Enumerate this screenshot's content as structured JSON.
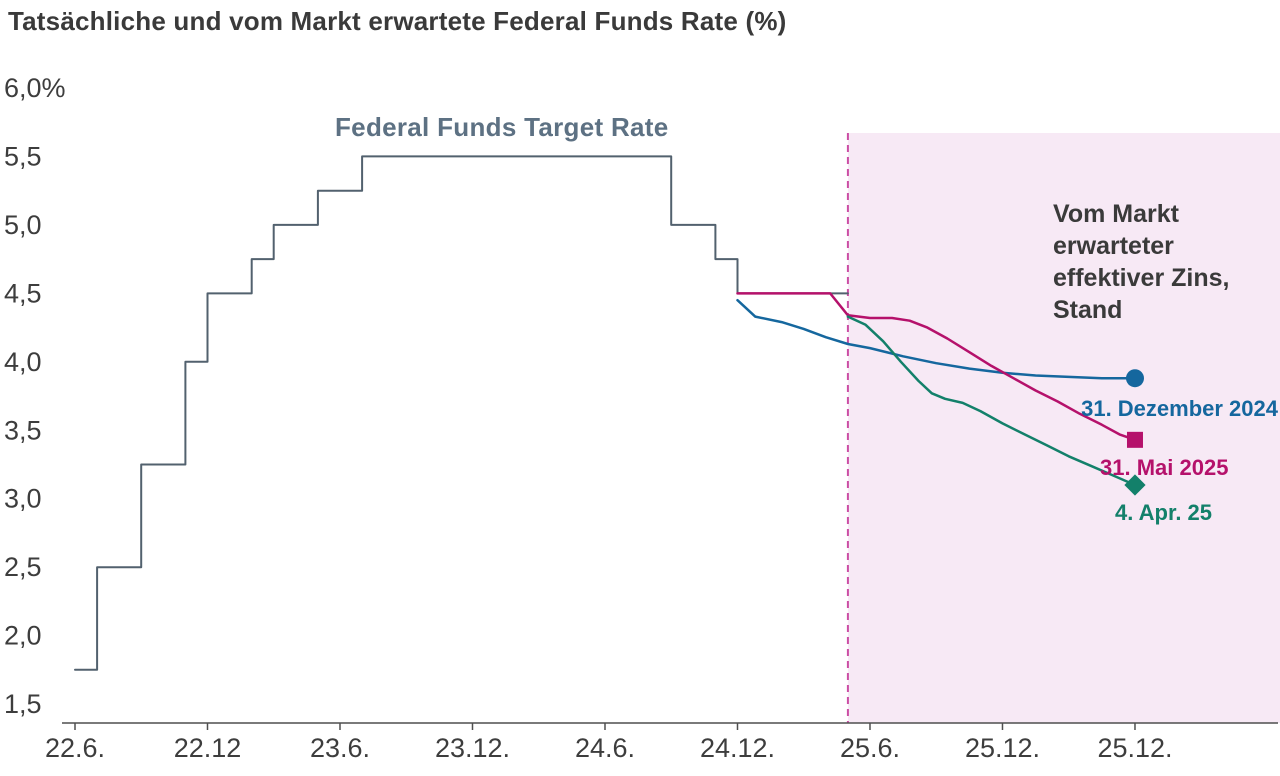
{
  "title": "Tatsächliche und vom Markt erwartete Federal Funds Rate (%)",
  "labels": {
    "target_rate": "Federal Funds Target Rate",
    "forecast_annotation": "Vom Markt erwarteter effektiver Zins, Stand"
  },
  "colors": {
    "target": "#52616e",
    "blue": "#15679e",
    "magenta": "#b5116b",
    "teal": "#13806a",
    "shade": "#f7e9f5",
    "dashed": "#cb4da4",
    "axis": "#4f4f4f",
    "tick_text": "#3d3d3d"
  },
  "chart_data": {
    "type": "line",
    "title": "Tatsächliche und vom Markt erwartete Federal Funds Rate (%)",
    "xlabel": "",
    "ylabel": "",
    "x_unit": "months since 2022-06, ticks every 6 months",
    "x_ticks": [
      0,
      6,
      12,
      18,
      24,
      30,
      36,
      42,
      48
    ],
    "x_tick_labels": [
      "22.6.",
      "22.12",
      "23.6.",
      "23.12.",
      "24.6.",
      "24.12.",
      "25.6.",
      "25.12.",
      "25.12."
    ],
    "y_ticks": [
      6.0,
      5.5,
      5.0,
      4.5,
      4.0,
      3.5,
      3.0,
      2.5,
      2.0,
      1.5
    ],
    "y_tick_labels": [
      "6,0%",
      "5,5",
      "5,0",
      "4,5",
      "4,0",
      "3,5",
      "3,0",
      "2,5",
      "2,0",
      "1,5"
    ],
    "ylim": [
      1.3,
      6.0
    ],
    "xlim": [
      0,
      49
    ],
    "grid": false,
    "legend_position": "inline-annotations",
    "forecast_region_start_x": 35,
    "series": [
      {
        "name": "Federal Funds Target Rate",
        "style": "step",
        "color_key": "target",
        "marker": "none",
        "width": 2,
        "points": [
          [
            0,
            1.75
          ],
          [
            1,
            1.75
          ],
          [
            1,
            2.5
          ],
          [
            3,
            2.5
          ],
          [
            3,
            3.25
          ],
          [
            5,
            3.25
          ],
          [
            5,
            4.0
          ],
          [
            6,
            4.0
          ],
          [
            6,
            4.5
          ],
          [
            8,
            4.5
          ],
          [
            8,
            4.75
          ],
          [
            9,
            4.75
          ],
          [
            9,
            5.0
          ],
          [
            11,
            5.0
          ],
          [
            11,
            5.25
          ],
          [
            13,
            5.25
          ],
          [
            13,
            5.5
          ],
          [
            27,
            5.5
          ],
          [
            27,
            5.0
          ],
          [
            29,
            5.0
          ],
          [
            29,
            4.75
          ],
          [
            30,
            4.75
          ],
          [
            30,
            4.5
          ],
          [
            35,
            4.5
          ]
        ]
      },
      {
        "name": "31. Dezember 2024",
        "style": "line",
        "color_key": "blue",
        "marker": "circle",
        "width": 2.5,
        "points": [
          [
            30,
            4.45
          ],
          [
            30.8,
            4.33
          ],
          [
            32,
            4.29
          ],
          [
            33,
            4.24
          ],
          [
            34,
            4.18
          ],
          [
            35,
            4.13
          ],
          [
            36,
            4.1
          ],
          [
            37.5,
            4.04
          ],
          [
            39,
            3.99
          ],
          [
            40.5,
            3.95
          ],
          [
            42,
            3.92
          ],
          [
            43.5,
            3.9
          ],
          [
            45,
            3.89
          ],
          [
            46.5,
            3.88
          ],
          [
            48,
            3.88
          ]
        ]
      },
      {
        "name": "31. Mai 2025",
        "style": "line",
        "color_key": "magenta",
        "marker": "square",
        "width": 2.5,
        "points": [
          [
            30,
            4.5
          ],
          [
            34.2,
            4.5
          ],
          [
            35,
            4.34
          ],
          [
            36,
            4.32
          ],
          [
            37,
            4.32
          ],
          [
            37.8,
            4.3
          ],
          [
            38.6,
            4.25
          ],
          [
            39.5,
            4.17
          ],
          [
            40.5,
            4.07
          ],
          [
            41.5,
            3.97
          ],
          [
            42.5,
            3.88
          ],
          [
            43.5,
            3.79
          ],
          [
            44.5,
            3.71
          ],
          [
            45.5,
            3.62
          ],
          [
            46.5,
            3.54
          ],
          [
            47.3,
            3.47
          ],
          [
            48,
            3.43
          ]
        ]
      },
      {
        "name": "4. Apr. 25",
        "style": "line",
        "color_key": "teal",
        "marker": "diamond",
        "width": 2.5,
        "points": [
          [
            35,
            4.33
          ],
          [
            35.8,
            4.27
          ],
          [
            36.6,
            4.15
          ],
          [
            37.4,
            4.0
          ],
          [
            38.2,
            3.86
          ],
          [
            38.8,
            3.77
          ],
          [
            39.4,
            3.73
          ],
          [
            40.2,
            3.7
          ],
          [
            41,
            3.64
          ],
          [
            42,
            3.55
          ],
          [
            43,
            3.47
          ],
          [
            44,
            3.39
          ],
          [
            45,
            3.31
          ],
          [
            46,
            3.24
          ],
          [
            47,
            3.17
          ],
          [
            48,
            3.1
          ]
        ]
      }
    ]
  }
}
